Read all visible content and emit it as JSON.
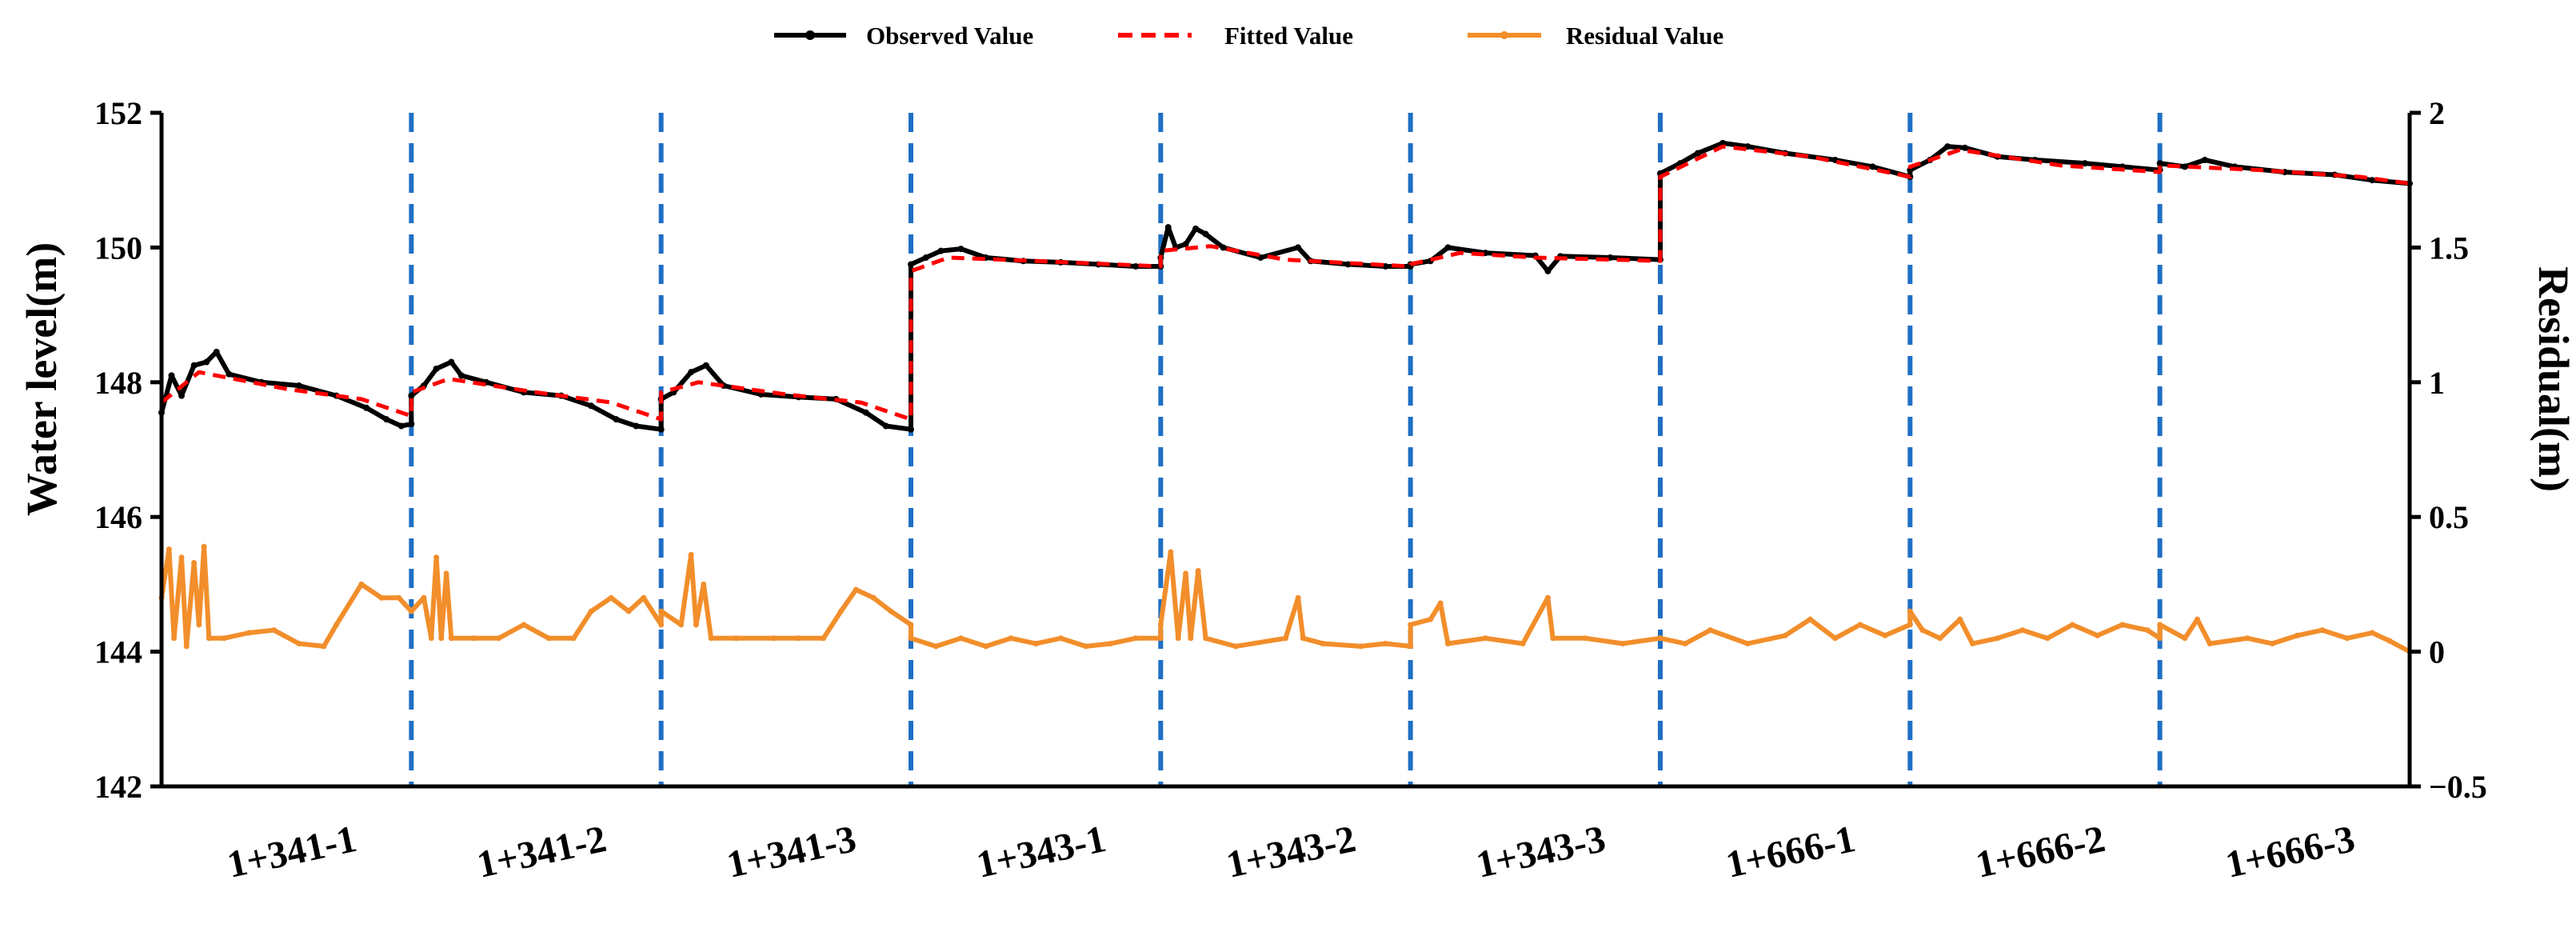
{
  "chart_data": {
    "type": "line",
    "legend": [
      {
        "label": "Observed Value",
        "color": "#000000",
        "style": "solid-marker"
      },
      {
        "label": "Fitted Value",
        "color": "#ff0000",
        "style": "dashed"
      },
      {
        "label": "Residual Value",
        "color": "#f28e2b",
        "style": "solid-marker"
      }
    ],
    "ylabel_left": "Water level(m)",
    "ylabel_right": "Residual(m)",
    "ylim_left": [
      142,
      152
    ],
    "yticks_left": [
      "142",
      "144",
      "146",
      "148",
      "150",
      "152"
    ],
    "ylim_right": [
      -0.5,
      2
    ],
    "yticks_right": [
      "−0.5",
      "0",
      "0.5",
      "1",
      "1.5",
      "2"
    ],
    "categories": [
      "1+341-1",
      "1+341-2",
      "1+341-3",
      "1+343-1",
      "1+343-2",
      "1+343-3",
      "1+666-1",
      "1+666-2",
      "1+666-3"
    ],
    "separator_color": "#1f6fc5",
    "series": [
      {
        "name": "Observed Value",
        "axis": "left",
        "color": "#000000",
        "segments": [
          [
            [
              0.0,
              147.55
            ],
            [
              0.04,
              148.1
            ],
            [
              0.08,
              147.8
            ],
            [
              0.13,
              148.25
            ],
            [
              0.18,
              148.3
            ],
            [
              0.22,
              148.45
            ],
            [
              0.27,
              148.12
            ],
            [
              0.4,
              148.0
            ],
            [
              0.55,
              147.95
            ],
            [
              0.7,
              147.8
            ],
            [
              0.82,
              147.62
            ],
            [
              0.9,
              147.45
            ],
            [
              0.96,
              147.35
            ],
            [
              1.0,
              147.38
            ]
          ],
          [
            [
              0.0,
              147.8
            ],
            [
              0.05,
              147.95
            ],
            [
              0.1,
              148.2
            ],
            [
              0.16,
              148.3
            ],
            [
              0.2,
              148.1
            ],
            [
              0.3,
              148.0
            ],
            [
              0.45,
              147.85
            ],
            [
              0.6,
              147.8
            ],
            [
              0.72,
              147.65
            ],
            [
              0.82,
              147.45
            ],
            [
              0.9,
              147.35
            ],
            [
              1.0,
              147.3
            ]
          ],
          [
            [
              0.0,
              147.75
            ],
            [
              0.05,
              147.85
            ],
            [
              0.12,
              148.15
            ],
            [
              0.18,
              148.25
            ],
            [
              0.25,
              147.95
            ],
            [
              0.4,
              147.82
            ],
            [
              0.55,
              147.78
            ],
            [
              0.7,
              147.75
            ],
            [
              0.82,
              147.55
            ],
            [
              0.9,
              147.35
            ],
            [
              1.0,
              147.3
            ]
          ],
          [
            [
              0.0,
              149.75
            ],
            [
              0.06,
              149.85
            ],
            [
              0.12,
              149.95
            ],
            [
              0.2,
              149.98
            ],
            [
              0.3,
              149.85
            ],
            [
              0.45,
              149.8
            ],
            [
              0.6,
              149.78
            ],
            [
              0.75,
              149.75
            ],
            [
              0.9,
              149.72
            ],
            [
              1.0,
              149.72
            ]
          ],
          [
            [
              0.0,
              149.85
            ],
            [
              0.03,
              150.3
            ],
            [
              0.06,
              150.0
            ],
            [
              0.1,
              150.05
            ],
            [
              0.14,
              150.28
            ],
            [
              0.18,
              150.2
            ],
            [
              0.25,
              150.0
            ],
            [
              0.4,
              149.85
            ],
            [
              0.55,
              150.0
            ],
            [
              0.6,
              149.8
            ],
            [
              0.75,
              149.75
            ],
            [
              0.9,
              149.72
            ],
            [
              1.0,
              149.72
            ]
          ],
          [
            [
              0.0,
              149.75
            ],
            [
              0.08,
              149.8
            ],
            [
              0.15,
              150.0
            ],
            [
              0.3,
              149.92
            ],
            [
              0.5,
              149.88
            ],
            [
              0.55,
              149.65
            ],
            [
              0.6,
              149.87
            ],
            [
              0.8,
              149.85
            ],
            [
              1.0,
              149.82
            ]
          ],
          [
            [
              0.0,
              151.1
            ],
            [
              0.08,
              151.25
            ],
            [
              0.15,
              151.4
            ],
            [
              0.25,
              151.55
            ],
            [
              0.35,
              151.5
            ],
            [
              0.5,
              151.4
            ],
            [
              0.7,
              151.3
            ],
            [
              0.85,
              151.2
            ],
            [
              1.0,
              151.05
            ]
          ],
          [
            [
              0.0,
              151.15
            ],
            [
              0.08,
              151.3
            ],
            [
              0.15,
              151.5
            ],
            [
              0.22,
              151.48
            ],
            [
              0.35,
              151.35
            ],
            [
              0.5,
              151.3
            ],
            [
              0.7,
              151.25
            ],
            [
              0.85,
              151.2
            ],
            [
              1.0,
              151.15
            ]
          ],
          [
            [
              0.0,
              151.25
            ],
            [
              0.1,
              151.2
            ],
            [
              0.18,
              151.3
            ],
            [
              0.3,
              151.2
            ],
            [
              0.5,
              151.12
            ],
            [
              0.7,
              151.08
            ],
            [
              0.85,
              151.0
            ],
            [
              1.0,
              150.95
            ]
          ]
        ]
      },
      {
        "name": "Fitted Value",
        "axis": "left",
        "color": "#ff0000",
        "segments": [
          [
            [
              0.0,
              147.7
            ],
            [
              0.15,
              148.15
            ],
            [
              0.5,
              147.9
            ],
            [
              0.8,
              147.75
            ],
            [
              1.0,
              147.5
            ]
          ],
          [
            [
              0.0,
              147.85
            ],
            [
              0.15,
              148.05
            ],
            [
              0.5,
              147.85
            ],
            [
              0.8,
              147.7
            ],
            [
              1.0,
              147.45
            ]
          ],
          [
            [
              0.0,
              147.85
            ],
            [
              0.15,
              148.0
            ],
            [
              0.5,
              147.82
            ],
            [
              0.8,
              147.7
            ],
            [
              1.0,
              147.45
            ]
          ],
          [
            [
              0.0,
              149.65
            ],
            [
              0.15,
              149.85
            ],
            [
              0.5,
              149.8
            ],
            [
              1.0,
              149.72
            ]
          ],
          [
            [
              0.0,
              149.95
            ],
            [
              0.2,
              150.02
            ],
            [
              0.5,
              149.82
            ],
            [
              1.0,
              149.72
            ]
          ],
          [
            [
              0.0,
              149.75
            ],
            [
              0.2,
              149.92
            ],
            [
              0.5,
              149.85
            ],
            [
              1.0,
              149.8
            ]
          ],
          [
            [
              0.0,
              151.05
            ],
            [
              0.25,
              151.5
            ],
            [
              0.6,
              151.35
            ],
            [
              1.0,
              151.05
            ]
          ],
          [
            [
              0.0,
              151.2
            ],
            [
              0.2,
              151.45
            ],
            [
              0.6,
              151.22
            ],
            [
              1.0,
              151.12
            ]
          ],
          [
            [
              0.0,
              151.22
            ],
            [
              0.4,
              151.15
            ],
            [
              0.8,
              151.05
            ],
            [
              1.0,
              150.95
            ]
          ]
        ]
      },
      {
        "name": "Residual Value",
        "axis": "right",
        "color": "#f28e2b",
        "segments": [
          [
            [
              0.0,
              0.2
            ],
            [
              0.03,
              0.38
            ],
            [
              0.05,
              0.05
            ],
            [
              0.08,
              0.35
            ],
            [
              0.1,
              0.02
            ],
            [
              0.13,
              0.33
            ],
            [
              0.15,
              0.1
            ],
            [
              0.17,
              0.39
            ],
            [
              0.19,
              0.05
            ],
            [
              0.25,
              0.05
            ],
            [
              0.35,
              0.07
            ],
            [
              0.45,
              0.08
            ],
            [
              0.55,
              0.03
            ],
            [
              0.65,
              0.02
            ],
            [
              0.7,
              0.1
            ],
            [
              0.8,
              0.25
            ],
            [
              0.88,
              0.2
            ],
            [
              0.95,
              0.2
            ],
            [
              1.0,
              0.15
            ]
          ],
          [
            [
              0.0,
              0.15
            ],
            [
              0.05,
              0.2
            ],
            [
              0.08,
              0.05
            ],
            [
              0.1,
              0.35
            ],
            [
              0.12,
              0.05
            ],
            [
              0.14,
              0.29
            ],
            [
              0.16,
              0.05
            ],
            [
              0.25,
              0.05
            ],
            [
              0.35,
              0.05
            ],
            [
              0.45,
              0.1
            ],
            [
              0.55,
              0.05
            ],
            [
              0.65,
              0.05
            ],
            [
              0.72,
              0.15
            ],
            [
              0.8,
              0.2
            ],
            [
              0.87,
              0.15
            ],
            [
              0.93,
              0.2
            ],
            [
              1.0,
              0.1
            ]
          ],
          [
            [
              0.0,
              0.15
            ],
            [
              0.08,
              0.1
            ],
            [
              0.12,
              0.36
            ],
            [
              0.14,
              0.1
            ],
            [
              0.17,
              0.25
            ],
            [
              0.2,
              0.05
            ],
            [
              0.3,
              0.05
            ],
            [
              0.45,
              0.05
            ],
            [
              0.55,
              0.05
            ],
            [
              0.65,
              0.05
            ],
            [
              0.72,
              0.15
            ],
            [
              0.78,
              0.23
            ],
            [
              0.85,
              0.2
            ],
            [
              0.92,
              0.15
            ],
            [
              1.0,
              0.1
            ]
          ],
          [
            [
              0.0,
              0.05
            ],
            [
              0.1,
              0.02
            ],
            [
              0.2,
              0.05
            ],
            [
              0.3,
              0.02
            ],
            [
              0.4,
              0.05
            ],
            [
              0.5,
              0.03
            ],
            [
              0.6,
              0.05
            ],
            [
              0.7,
              0.02
            ],
            [
              0.8,
              0.03
            ],
            [
              0.9,
              0.05
            ],
            [
              1.0,
              0.05
            ]
          ],
          [
            [
              0.0,
              0.1
            ],
            [
              0.04,
              0.37
            ],
            [
              0.07,
              0.05
            ],
            [
              0.1,
              0.29
            ],
            [
              0.12,
              0.05
            ],
            [
              0.15,
              0.3
            ],
            [
              0.18,
              0.05
            ],
            [
              0.3,
              0.02
            ],
            [
              0.5,
              0.05
            ],
            [
              0.55,
              0.2
            ],
            [
              0.57,
              0.05
            ],
            [
              0.65,
              0.03
            ],
            [
              0.8,
              0.02
            ],
            [
              0.9,
              0.03
            ],
            [
              1.0,
              0.02
            ]
          ],
          [
            [
              0.0,
              0.1
            ],
            [
              0.08,
              0.12
            ],
            [
              0.12,
              0.18
            ],
            [
              0.15,
              0.03
            ],
            [
              0.3,
              0.05
            ],
            [
              0.45,
              0.03
            ],
            [
              0.55,
              0.2
            ],
            [
              0.57,
              0.05
            ],
            [
              0.7,
              0.05
            ],
            [
              0.85,
              0.03
            ],
            [
              1.0,
              0.05
            ]
          ],
          [
            [
              0.0,
              0.05
            ],
            [
              0.1,
              0.03
            ],
            [
              0.2,
              0.08
            ],
            [
              0.35,
              0.03
            ],
            [
              0.5,
              0.06
            ],
            [
              0.6,
              0.12
            ],
            [
              0.7,
              0.05
            ],
            [
              0.8,
              0.1
            ],
            [
              0.9,
              0.06
            ],
            [
              1.0,
              0.1
            ]
          ],
          [
            [
              0.0,
              0.15
            ],
            [
              0.05,
              0.08
            ],
            [
              0.12,
              0.05
            ],
            [
              0.2,
              0.12
            ],
            [
              0.25,
              0.03
            ],
            [
              0.35,
              0.05
            ],
            [
              0.45,
              0.08
            ],
            [
              0.55,
              0.05
            ],
            [
              0.65,
              0.1
            ],
            [
              0.75,
              0.06
            ],
            [
              0.85,
              0.1
            ],
            [
              0.95,
              0.08
            ],
            [
              1.0,
              0.05
            ]
          ],
          [
            [
              0.0,
              0.1
            ],
            [
              0.1,
              0.05
            ],
            [
              0.15,
              0.12
            ],
            [
              0.2,
              0.03
            ],
            [
              0.35,
              0.05
            ],
            [
              0.45,
              0.03
            ],
            [
              0.55,
              0.06
            ],
            [
              0.65,
              0.08
            ],
            [
              0.75,
              0.05
            ],
            [
              0.85,
              0.07
            ],
            [
              0.92,
              0.04
            ],
            [
              1.0,
              0.0
            ]
          ]
        ]
      }
    ]
  }
}
